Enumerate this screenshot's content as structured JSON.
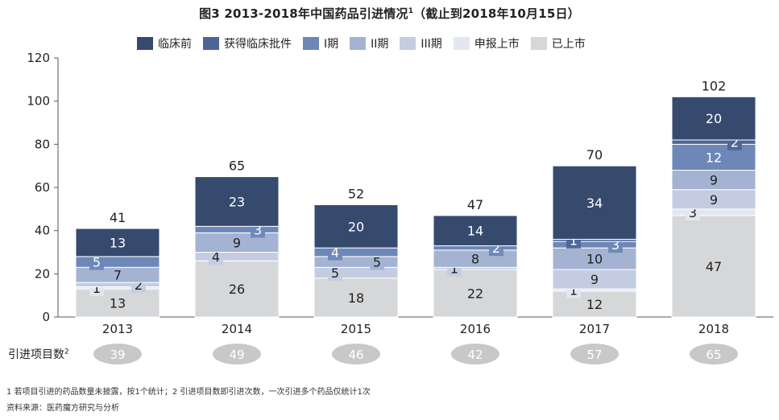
{
  "title": "图3 2013-2018年中国药品引进情况",
  "title_sup": "1",
  "title_suffix": "（截止到2018年10月15日）",
  "count_row_label": "引进项目数",
  "count_row_sup": "2",
  "footnote": "1 若项目引进的药品数量未披露，按1个统计；2 引进项目数即引进次数，一次引进多个药品仅统计1次",
  "source": "资料来源：医药魔方研究与分析",
  "chart_data": {
    "type": "bar",
    "stacked": true,
    "categories": [
      "2013",
      "2014",
      "2015",
      "2016",
      "2017",
      "2018"
    ],
    "ylim": [
      0,
      120
    ],
    "yticks": [
      0,
      20,
      40,
      60,
      80,
      100,
      120
    ],
    "grid": false,
    "legend_position": "top",
    "series": [
      {
        "name": "已上市",
        "color": "#d6d7d9",
        "values": [
          13,
          26,
          18,
          22,
          12,
          47
        ]
      },
      {
        "name": "申报上市",
        "color": "#e3e7f0",
        "values": [
          1,
          0,
          0,
          0,
          1,
          3
        ]
      },
      {
        "name": "III期",
        "color": "#c4cce2",
        "values": [
          2,
          4,
          5,
          1,
          9,
          9
        ]
      },
      {
        "name": "II期",
        "color": "#a3b3d1",
        "values": [
          7,
          9,
          5,
          8,
          10,
          9
        ]
      },
      {
        "name": "I期",
        "color": "#6d88b7",
        "values": [
          5,
          3,
          4,
          2,
          3,
          12
        ]
      },
      {
        "name": "获得临床批件",
        "color": "#4d6596",
        "values": [
          0,
          0,
          0,
          0,
          1,
          2
        ]
      },
      {
        "name": "临床前",
        "color": "#364a6e",
        "values": [
          13,
          23,
          20,
          14,
          34,
          20
        ]
      }
    ],
    "totals": [
      41,
      65,
      52,
      47,
      70,
      102
    ],
    "project_counts": [
      39,
      49,
      46,
      42,
      57,
      65
    ],
    "legend_order": [
      "临床前",
      "获得临床批件",
      "I期",
      "II期",
      "III期",
      "申报上市",
      "已上市"
    ]
  }
}
